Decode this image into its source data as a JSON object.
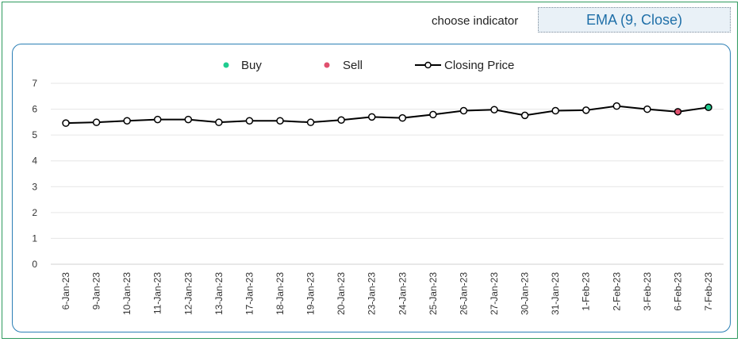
{
  "indicator": {
    "label": "choose indicator",
    "value": "EMA (9, Close)"
  },
  "legend": {
    "buy": "Buy",
    "sell": "Sell",
    "closing": "Closing Price"
  },
  "colors": {
    "buy": "#1fcc8f",
    "sell": "#e0506e",
    "line": "#000000",
    "panel_border": "#2b7fb5",
    "frame_border": "#2e9a5e"
  },
  "chart_data": {
    "type": "line",
    "categories": [
      "6-Jan-23",
      "9-Jan-23",
      "10-Jan-23",
      "11-Jan-23",
      "12-Jan-23",
      "13-Jan-23",
      "17-Jan-23",
      "18-Jan-23",
      "19-Jan-23",
      "20-Jan-23",
      "23-Jan-23",
      "24-Jan-23",
      "25-Jan-23",
      "26-Jan-23",
      "27-Jan-23",
      "30-Jan-23",
      "31-Jan-23",
      "1-Feb-23",
      "2-Feb-23",
      "3-Feb-23",
      "6-Feb-23",
      "7-Feb-23"
    ],
    "series": [
      {
        "name": "Closing Price",
        "values": [
          5.46,
          5.49,
          5.55,
          5.6,
          5.6,
          5.49,
          5.55,
          5.55,
          5.49,
          5.58,
          5.7,
          5.66,
          5.79,
          5.94,
          5.98,
          5.76,
          5.94,
          5.96,
          6.12,
          6.0,
          5.9,
          6.07
        ]
      }
    ],
    "buy_signals": [
      "7-Feb-23"
    ],
    "sell_signals": [
      "6-Feb-23"
    ],
    "yticks": [
      0,
      1,
      2,
      3,
      4,
      5,
      6,
      7
    ],
    "ylim": [
      0,
      7
    ],
    "grid": true,
    "legend_position": "top"
  }
}
